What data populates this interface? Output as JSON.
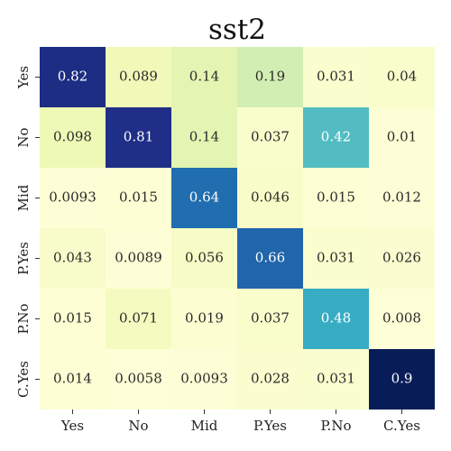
{
  "chart_data": {
    "type": "heatmap",
    "title": "sst2",
    "x_categories": [
      "Yes",
      "No",
      "Mid",
      "P.Yes",
      "P.No",
      "C.Yes"
    ],
    "y_categories": [
      "Yes",
      "No",
      "Mid",
      "P.Yes",
      "P.No",
      "C.Yes"
    ],
    "values": [
      [
        0.82,
        0.089,
        0.14,
        0.19,
        0.031,
        0.04
      ],
      [
        0.098,
        0.81,
        0.14,
        0.037,
        0.42,
        0.01
      ],
      [
        0.0093,
        0.015,
        0.64,
        0.046,
        0.015,
        0.012
      ],
      [
        0.043,
        0.0089,
        0.056,
        0.66,
        0.031,
        0.026
      ],
      [
        0.015,
        0.071,
        0.019,
        0.037,
        0.48,
        0.008
      ],
      [
        0.014,
        0.0058,
        0.0093,
        0.028,
        0.031,
        0.9
      ]
    ],
    "labels": [
      [
        "0.82",
        "0.089",
        "0.14",
        "0.19",
        "0.031",
        "0.04"
      ],
      [
        "0.098",
        "0.81",
        "0.14",
        "0.037",
        "0.42",
        "0.01"
      ],
      [
        "0.0093",
        "0.015",
        "0.64",
        "0.046",
        "0.015",
        "0.012"
      ],
      [
        "0.043",
        "0.0089",
        "0.056",
        "0.66",
        "0.031",
        "0.026"
      ],
      [
        "0.015",
        "0.071",
        "0.019",
        "0.037",
        "0.48",
        "0.008"
      ],
      [
        "0.014",
        "0.0058",
        "0.0093",
        "0.028",
        "0.031",
        "0.9"
      ]
    ],
    "colormap": "YlGnBu",
    "value_range": [
      0,
      0.9
    ],
    "grid": false,
    "colorbar": false
  }
}
